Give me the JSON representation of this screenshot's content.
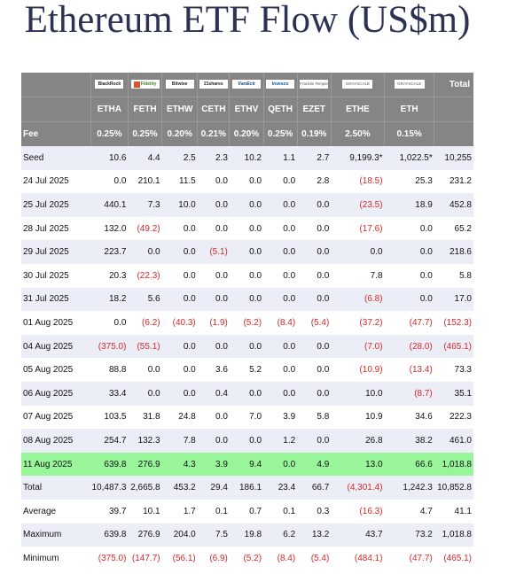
{
  "title": "Ethereum ETF Flow (US$m)",
  "chart_data": {
    "type": "table",
    "title": "Ethereum ETF Flow (US$m)",
    "issuer_logos": [
      "BlackRock",
      "Fidelity",
      "Bitwise",
      "21shares",
      "VanEck",
      "Invesco",
      "Franklin Templeton",
      "GRAYSCALE",
      "GRAYSCALE"
    ],
    "total_header": "Total",
    "tickers": [
      "ETHA",
      "FETH",
      "ETHW",
      "CETH",
      "ETHV",
      "QETH",
      "EZET",
      "ETHE",
      "ETH"
    ],
    "fee_label": "Fee",
    "fees": [
      "0.25%",
      "0.25%",
      "0.20%",
      "0.21%",
      "0.20%",
      "0.25%",
      "0.19%",
      "2.50%",
      "0.15%"
    ],
    "rows": [
      {
        "label": "Seed",
        "values": [
          "10.6",
          "4.4",
          "2.5",
          "2.3",
          "10.2",
          "1.1",
          "2.7",
          "9,199.3*",
          "1,022.5*"
        ],
        "total": "10,255"
      },
      {
        "label": "24 Jul 2025",
        "values": [
          "0.0",
          "210.1",
          "11.5",
          "0.0",
          "0.0",
          "0.0",
          "2.8",
          "(18.5)",
          "25.3"
        ],
        "total": "231.2"
      },
      {
        "label": "25 Jul 2025",
        "values": [
          "440.1",
          "7.3",
          "10.0",
          "0.0",
          "0.0",
          "0.0",
          "0.0",
          "(23.5)",
          "18.9"
        ],
        "total": "452.8"
      },
      {
        "label": "28 Jul 2025",
        "values": [
          "132.0",
          "(49.2)",
          "0.0",
          "0.0",
          "0.0",
          "0.0",
          "0.0",
          "(17.6)",
          "0.0"
        ],
        "total": "65.2"
      },
      {
        "label": "29 Jul 2025",
        "values": [
          "223.7",
          "0.0",
          "0.0",
          "(5.1)",
          "0.0",
          "0.0",
          "0.0",
          "0.0",
          "0.0"
        ],
        "total": "218.6"
      },
      {
        "label": "30 Jul 2025",
        "values": [
          "20.3",
          "(22.3)",
          "0.0",
          "0.0",
          "0.0",
          "0.0",
          "0.0",
          "7.8",
          "0.0"
        ],
        "total": "5.8"
      },
      {
        "label": "31 Jul 2025",
        "values": [
          "18.2",
          "5.6",
          "0.0",
          "0.0",
          "0.0",
          "0.0",
          "0.0",
          "(6.8)",
          "0.0"
        ],
        "total": "17.0"
      },
      {
        "label": "01 Aug 2025",
        "values": [
          "0.0",
          "(6.2)",
          "(40.3)",
          "(1.9)",
          "(5.2)",
          "(8.4)",
          "(5.4)",
          "(37.2)",
          "(47.7)"
        ],
        "total": "(152.3)"
      },
      {
        "label": "04 Aug 2025",
        "values": [
          "(375.0)",
          "(55.1)",
          "0.0",
          "0.0",
          "0.0",
          "0.0",
          "0.0",
          "(7.0)",
          "(28.0)"
        ],
        "total": "(465.1)"
      },
      {
        "label": "05 Aug 2025",
        "values": [
          "88.8",
          "0.0",
          "0.0",
          "3.6",
          "5.2",
          "0.0",
          "0.0",
          "(10.9)",
          "(13.4)"
        ],
        "total": "73.3"
      },
      {
        "label": "06 Aug 2025",
        "values": [
          "33.4",
          "0.0",
          "0.0",
          "0.4",
          "0.0",
          "0.0",
          "0.0",
          "10.0",
          "(8.7)"
        ],
        "total": "35.1"
      },
      {
        "label": "07 Aug 2025",
        "values": [
          "103.5",
          "31.8",
          "24.8",
          "0.0",
          "7.0",
          "3.9",
          "5.8",
          "10.9",
          "34.6"
        ],
        "total": "222.3"
      },
      {
        "label": "08 Aug 2025",
        "values": [
          "254.7",
          "132.3",
          "7.8",
          "0.0",
          "0.0",
          "1.2",
          "0.0",
          "26.8",
          "38.2"
        ],
        "total": "461.0"
      },
      {
        "label": "11 Aug 2025",
        "values": [
          "639.8",
          "276.9",
          "4.3",
          "3.9",
          "9.4",
          "0.0",
          "4.9",
          "13.0",
          "66.6"
        ],
        "total": "1,018.8"
      },
      {
        "label": "Total",
        "values": [
          "10,487.3",
          "2,665.8",
          "453.2",
          "29.4",
          "186.1",
          "23.4",
          "66.7",
          "(4,301.4)",
          "1,242.3"
        ],
        "total": "10,852.8"
      },
      {
        "label": "Average",
        "values": [
          "39.7",
          "10.1",
          "1.7",
          "0.1",
          "0.7",
          "0.1",
          "0.3",
          "(16.3)",
          "4.7"
        ],
        "total": "41.1"
      },
      {
        "label": "Maximum",
        "values": [
          "639.8",
          "276.9",
          "204.0",
          "7.5",
          "19.8",
          "6.2",
          "13.2",
          "43.7",
          "73.2"
        ],
        "total": "1,018.8"
      },
      {
        "label": "Minimum",
        "values": [
          "(375.0)",
          "(147.7)",
          "(56.1)",
          "(6.9)",
          "(5.2)",
          "(8.4)",
          "(5.4)",
          "(484.1)",
          "(47.7)"
        ],
        "total": "(465.1)"
      }
    ],
    "highlight_row": "11 Aug 2025",
    "colors": {
      "header_bg": "#858585",
      "stripe_bg": "#eceef7",
      "highlight_bg": "#99f59a",
      "negative": "#d62828",
      "title": "#2e3252"
    }
  }
}
